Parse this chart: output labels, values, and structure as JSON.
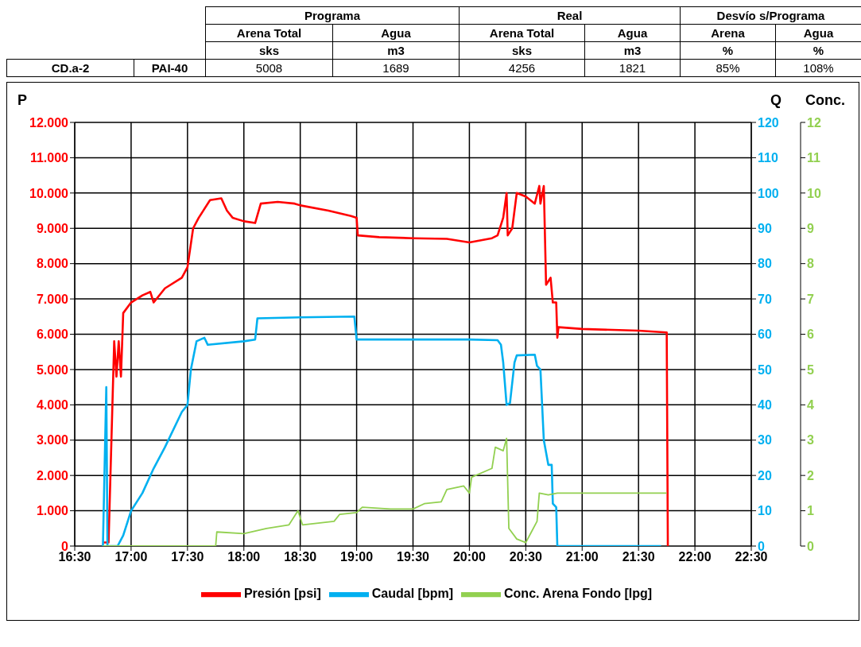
{
  "chart_data": [
    {
      "type": "other",
      "annotations": [
        "Programa",
        "Real",
        "Desvío s/Programa",
        "Arena Total",
        "Agua",
        "Arena Total",
        "Agua",
        "Arena",
        "Agua",
        "sks",
        "m3",
        "sks",
        "m3",
        "%",
        "%",
        "CD.a-2",
        "PAI-40",
        "5008",
        "1689",
        "4256",
        "1821",
        "85%",
        "108%"
      ]
    },
    {
      "type": "line",
      "ylabel": "P",
      "y2label": "Q",
      "y3label": "Conc.",
      "xlim": [
        16.5,
        22.5
      ],
      "xticks": [
        {
          "value": 16.5,
          "label": "16:30"
        },
        {
          "value": 17,
          "label": "17:00"
        },
        {
          "value": 17.5,
          "label": "17:30"
        },
        {
          "value": 18,
          "label": "18:00"
        },
        {
          "value": 18.5,
          "label": "18:30"
        },
        {
          "value": 19,
          "label": "19:00"
        },
        {
          "value": 19.5,
          "label": "19:30"
        },
        {
          "value": 20,
          "label": "20:00"
        },
        {
          "value": 20.5,
          "label": "20:30"
        },
        {
          "value": 21,
          "label": "21:00"
        },
        {
          "value": 21.5,
          "label": "21:30"
        },
        {
          "value": 22,
          "label": "22:00"
        },
        {
          "value": 22.5,
          "label": "22:30"
        }
      ],
      "ylim": [
        0,
        12000
      ],
      "yticks": [
        0,
        {
          "value": 1000,
          "label": "1.000"
        },
        {
          "value": 2000,
          "label": "2.000"
        },
        {
          "value": 3000,
          "label": "3.000"
        },
        {
          "value": 4000,
          "label": "4.000"
        },
        {
          "value": 5000,
          "label": "5.000"
        },
        {
          "value": 6000,
          "label": "6.000"
        },
        {
          "value": 7000,
          "label": "7.000"
        },
        {
          "value": 8000,
          "label": "8.000"
        },
        {
          "value": 9000,
          "label": "9.000"
        },
        {
          "value": 10000,
          "label": "10.000"
        },
        {
          "value": 11000,
          "label": "11.000"
        },
        {
          "value": 12000,
          "label": "12.000"
        }
      ],
      "y2lim": [
        0,
        120
      ],
      "y2ticks": [
        0,
        10,
        20,
        30,
        40,
        50,
        60,
        70,
        80,
        90,
        100,
        110,
        120
      ],
      "y3lim": [
        0,
        12
      ],
      "y3ticks": [
        0,
        1,
        2,
        3,
        4,
        5,
        6,
        7,
        8,
        9,
        10,
        11,
        12
      ],
      "grid": true,
      "legend": "bottom",
      "marker": "none",
      "series": [
        {
          "name": "Presión [psi]",
          "color": "#ff0000",
          "x": [
            16.75,
            16.8,
            16.85,
            16.87,
            16.89,
            16.91,
            16.93,
            17.0,
            17.1,
            17.17,
            17.2,
            17.3,
            17.45,
            17.5,
            17.55,
            17.6,
            17.7,
            17.8,
            17.85,
            17.9,
            18.0,
            18.1,
            18.15,
            18.3,
            18.45,
            18.5,
            18.75,
            18.95,
            19.0,
            19.01,
            19.2,
            19.5,
            19.8,
            20.0,
            20.2,
            20.25,
            20.3,
            20.33,
            20.34,
            20.38,
            20.42,
            20.5,
            20.58,
            20.62,
            20.63,
            20.66,
            20.68,
            20.72,
            20.74,
            20.77,
            20.78,
            20.79,
            21.0,
            21.5,
            21.75,
            21.76
          ],
          "values": [
            100,
            100,
            5800,
            4800,
            5800,
            4800,
            6600,
            6900,
            7100,
            7200,
            6900,
            7300,
            7600,
            7900,
            9000,
            9300,
            9800,
            9850,
            9500,
            9300,
            9200,
            9150,
            9700,
            9750,
            9700,
            9650,
            9500,
            9350,
            9300,
            8800,
            8750,
            8720,
            8700,
            8600,
            8720,
            8800,
            9300,
            10000,
            8800,
            9000,
            10000,
            9900,
            9700,
            10200,
            9700,
            10200,
            7400,
            7600,
            6900,
            6900,
            5900,
            6200,
            6150,
            6100,
            6050,
            0
          ]
        },
        {
          "name": "Caudal [bpm]",
          "color": "#00b0f0",
          "axis": "y2",
          "x": [
            16.75,
            16.78,
            16.79,
            16.88,
            16.93,
            17.0,
            17.1,
            17.2,
            17.3,
            17.45,
            17.5,
            17.53,
            17.58,
            17.65,
            17.68,
            18.0,
            18.1,
            18.12,
            18.5,
            18.98,
            19.0,
            19.5,
            20.0,
            20.25,
            20.28,
            20.3,
            20.33,
            20.36,
            20.4,
            20.42,
            20.58,
            20.6,
            20.63,
            20.66,
            20.7,
            20.73,
            20.74,
            20.77,
            20.78,
            21.5,
            21.7
          ],
          "values": [
            0,
            45,
            0,
            0,
            3,
            10,
            15,
            22,
            28,
            38,
            40,
            50,
            58,
            59,
            57,
            58,
            58.5,
            64.5,
            64.8,
            65,
            58.5,
            58.5,
            58.5,
            58.3,
            57,
            52,
            40,
            40.5,
            52,
            54,
            54.2,
            51,
            50,
            30,
            23,
            23,
            12,
            11,
            0,
            0,
            0
          ]
        },
        {
          "name": "Conc. Arena Fondo [lpg]",
          "color": "#92d050",
          "axis": "y3",
          "x": [
            16.75,
            17.75,
            17.76,
            18.0,
            18.2,
            18.4,
            18.48,
            18.52,
            18.8,
            18.85,
            19.0,
            19.05,
            19.3,
            19.5,
            19.6,
            19.75,
            19.8,
            19.95,
            20.0,
            20.02,
            20.2,
            20.23,
            20.3,
            20.33,
            20.35,
            20.42,
            20.5,
            20.55,
            20.6,
            20.62,
            20.7,
            20.78,
            21.75
          ],
          "values": [
            0,
            0,
            0.4,
            0.35,
            0.5,
            0.6,
            1.0,
            0.6,
            0.7,
            0.9,
            0.95,
            1.1,
            1.05,
            1.05,
            1.2,
            1.25,
            1.6,
            1.7,
            1.5,
            1.95,
            2.2,
            2.8,
            2.7,
            3.05,
            0.5,
            0.2,
            0.1,
            0.4,
            0.7,
            1.5,
            1.45,
            1.5,
            1.5
          ]
        }
      ]
    }
  ]
}
